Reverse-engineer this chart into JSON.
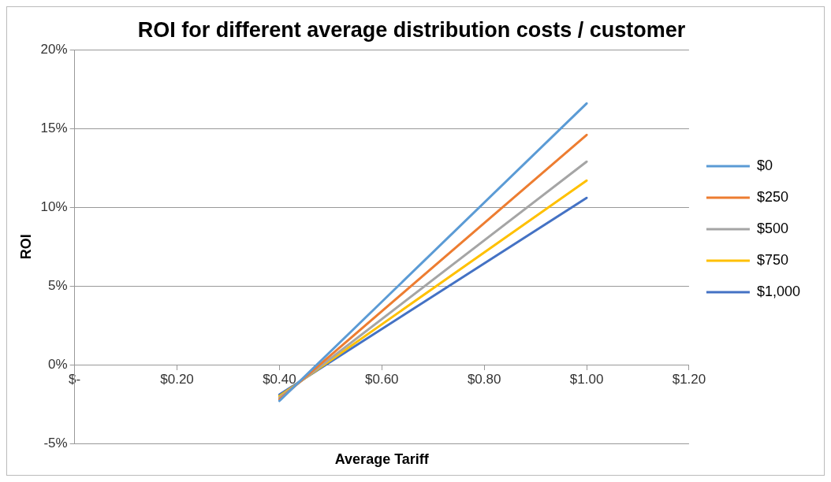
{
  "chart_data": {
    "type": "line",
    "title": "ROI for different average distribution costs / customer",
    "xlabel": "Average Tariff",
    "ylabel": "ROI",
    "x": [
      0.4,
      1.0
    ],
    "series": [
      {
        "name": "$0",
        "color": "#5b9bd5",
        "values": [
          -2.3,
          16.6
        ]
      },
      {
        "name": "$250",
        "color": "#ed7d31",
        "values": [
          -2.2,
          14.6
        ]
      },
      {
        "name": "$500",
        "color": "#a5a5a5",
        "values": [
          -2.1,
          12.9
        ]
      },
      {
        "name": "$750",
        "color": "#ffc000",
        "values": [
          -2.0,
          11.7
        ]
      },
      {
        "name": "$1,000",
        "color": "#4472c4",
        "values": [
          -1.9,
          10.6
        ]
      }
    ],
    "xlim": [
      0,
      1.2
    ],
    "xticks": [
      {
        "value": 0,
        "label": "$-"
      },
      {
        "value": 0.2,
        "label": "$0.20"
      },
      {
        "value": 0.4,
        "label": "$0.40"
      },
      {
        "value": 0.6,
        "label": "$0.60"
      },
      {
        "value": 0.8,
        "label": "$0.80"
      },
      {
        "value": 1.0,
        "label": "$1.00"
      },
      {
        "value": 1.2,
        "label": "$1.20"
      }
    ],
    "ylim": [
      -5,
      20
    ],
    "yticks": [
      {
        "value": -5,
        "label": "-5%"
      },
      {
        "value": 0,
        "label": "0%"
      },
      {
        "value": 5,
        "label": "5%"
      },
      {
        "value": 10,
        "label": "10%"
      },
      {
        "value": 15,
        "label": "15%"
      },
      {
        "value": 20,
        "label": "20%"
      }
    ],
    "grid": "y",
    "legend": "right",
    "marker": "none",
    "line_style": "solid"
  }
}
